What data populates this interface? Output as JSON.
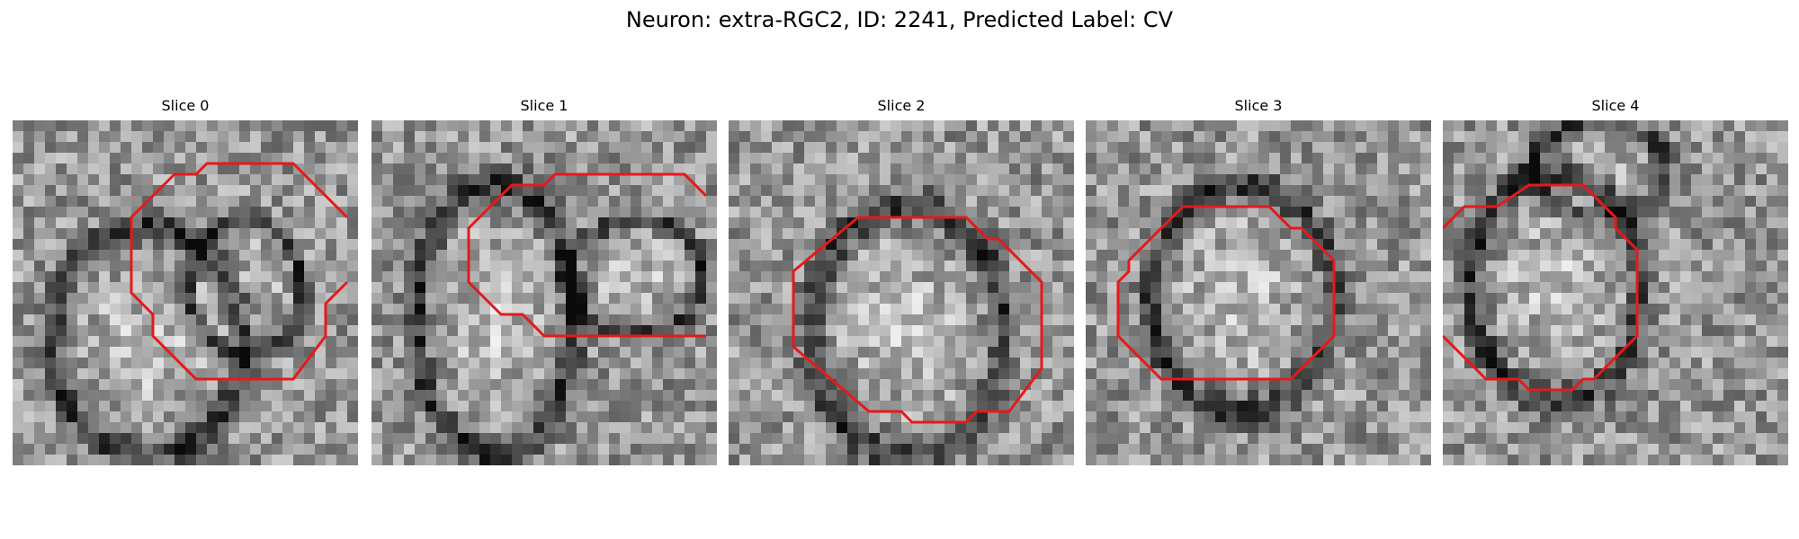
{
  "figure": {
    "title": "Neuron: extra-RGC2, ID: 2241, Predicted Label: CV"
  },
  "panels": [
    {
      "title": "Slice 0"
    },
    {
      "title": "Slice 1"
    },
    {
      "title": "Slice 2"
    },
    {
      "title": "Slice 3"
    },
    {
      "title": "Slice 4"
    }
  ],
  "colors": {
    "contour": "#e41a1c",
    "background": "#ffffff"
  },
  "image": {
    "kind": "grayscale-microscopy-patches",
    "grid": "32x32"
  }
}
